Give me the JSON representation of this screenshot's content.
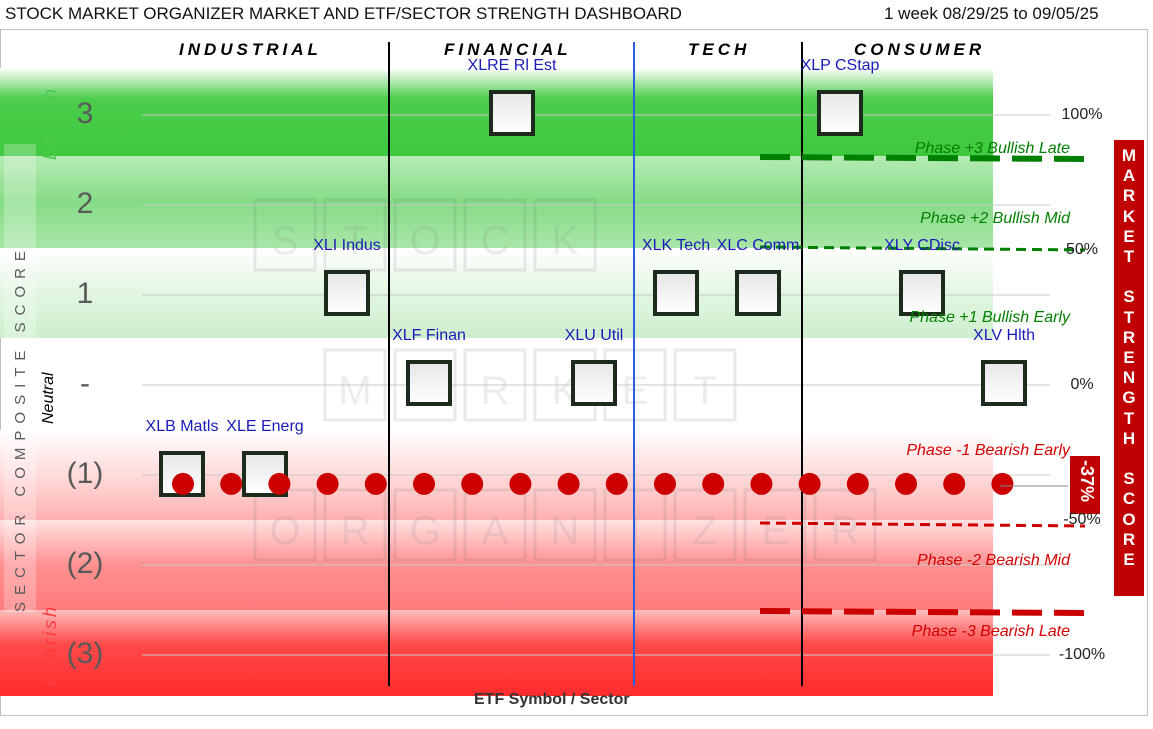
{
  "header": {
    "title": "STOCK MARKET ORGANIZER MARKET AND ETF/SECTOR STRENGTH DASHBOARD",
    "date_range": "1 week 08/29/25 to 09/05/25"
  },
  "sectors": [
    "INDUSTRIAL",
    "FINANCIAL",
    "TECH",
    "CONSUMER"
  ],
  "left_axis": {
    "title": "SECTOR COMPOSITE SCORE",
    "zone_labels": [
      "Bullish",
      "Neutral",
      "Bearish"
    ],
    "ticks": [
      "3",
      "2",
      "1",
      "-",
      "(1)",
      "(2)",
      "(3)"
    ]
  },
  "right_axis": {
    "title": "MARKET STRENGTH SCORE",
    "ticks": [
      "100%",
      "50%",
      "0%",
      "-50%",
      "-100%"
    ]
  },
  "x_axis_title": "ETF Symbol / Sector",
  "phases": [
    "Phase +3 Bullish Late",
    "Phase +2 Bullish Mid",
    "Phase +1 Bullish Early",
    "Phase -1 Bearish Early",
    "Phase -2 Bearish Mid",
    "Phase -3 Bearish Late"
  ],
  "market_strength_label": "-37%",
  "watermark": "STOCK MARKET ORGANIZER",
  "colors": {
    "bullish": "#3ec93e",
    "bearish": "#ff2b2b",
    "marker_dot": "#cc0000",
    "title_band": "#c00000",
    "etf_label": "#1a1ab8",
    "bullish_text": "#008000",
    "bearish_text": "#d40000"
  },
  "chart_data": {
    "type": "scatter",
    "x_axis": "ETF Symbol / Sector",
    "y_left_axis": "SECTOR COMPOSITE SCORE",
    "y_left_range": [
      -3,
      3
    ],
    "y_right_axis": "MARKET STRENGTH SCORE",
    "y_right_range": [
      -100,
      100
    ],
    "etfs": [
      {
        "label": "XLB Matls",
        "sector": "INDUSTRIAL",
        "score": -1
      },
      {
        "label": "XLE Energ",
        "sector": "INDUSTRIAL",
        "score": -1
      },
      {
        "label": "XLI Indus",
        "sector": "INDUSTRIAL",
        "score": 1
      },
      {
        "label": "XLF Finan",
        "sector": "FINANCIAL",
        "score": 0
      },
      {
        "label": "XLRE Rl Est",
        "sector": "FINANCIAL",
        "score": 3
      },
      {
        "label": "XLU Util",
        "sector": "FINANCIAL",
        "score": 0
      },
      {
        "label": "XLK Tech",
        "sector": "TECH",
        "score": 1
      },
      {
        "label": "XLC Comm",
        "sector": "TECH",
        "score": 1
      },
      {
        "label": "XLP CStap",
        "sector": "CONSUMER",
        "score": 3
      },
      {
        "label": "XLY CDisc",
        "sector": "CONSUMER",
        "score": 1
      },
      {
        "label": "XLV Hlth",
        "sector": "CONSUMER",
        "score": 0
      }
    ],
    "market_strength": -37,
    "phase_thresholds": [
      {
        "value": 80,
        "style": "thick-dashed",
        "color": "#008000"
      },
      {
        "value": 50,
        "style": "thin-dashed",
        "color": "#008000"
      },
      {
        "value": -50,
        "style": "thin-dashed",
        "color": "#cc0000"
      },
      {
        "value": -80,
        "style": "thick-dashed",
        "color": "#cc0000"
      }
    ]
  }
}
